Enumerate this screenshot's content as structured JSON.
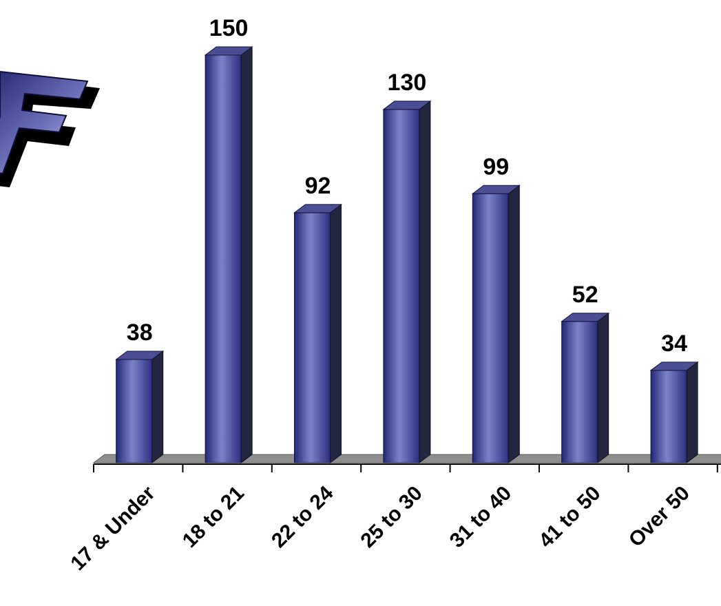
{
  "chart_data": {
    "type": "bar",
    "categories": [
      "17 & Under",
      "18 to 21",
      "22 to 24",
      "25 to 30",
      "31 to 40",
      "41 to 50",
      "Over 50"
    ],
    "values": [
      38,
      150,
      92,
      130,
      99,
      52,
      34
    ],
    "ylim": [
      0,
      150
    ],
    "grid": false,
    "legend": "none",
    "style": "3d-cylinder",
    "colors": {
      "bar_front_dark": "#222a78",
      "bar_front_light": "#7c84c8",
      "bar_top": "#4a4f94",
      "bar_side": "#23263f",
      "floor": "#8f8f8f",
      "axis": "#000000",
      "text": "#000000"
    }
  },
  "logo": {
    "text": "F",
    "colors": {
      "dark": "#1c1f6a",
      "light": "#c9cdf4",
      "shadow": "#000000"
    }
  }
}
